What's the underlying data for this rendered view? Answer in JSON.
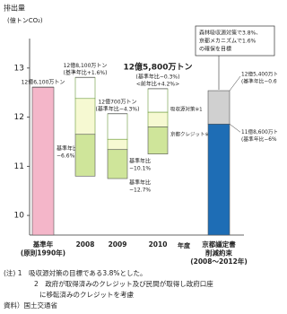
{
  "chart_data": {
    "type": "floating-bar",
    "y_label": "排出量",
    "y_unit": "(億トンCO₂)",
    "x_unit": "年度",
    "ylim": [
      9.6,
      13.6
    ],
    "yticks": [
      10,
      11,
      12,
      13
    ],
    "categories": [
      [
        "基準年",
        "(原則1990年)"
      ],
      [
        "2008"
      ],
      [
        "2009"
      ],
      [
        "2010"
      ],
      [
        "京都議定書",
        "削減約束",
        "(2008〜2012年)"
      ]
    ],
    "bars": [
      {
        "segments": [
          {
            "range": [
              null,
              12.61
            ],
            "color": "#f4b6c9"
          }
        ],
        "labels": [
          {
            "value": 12.61,
            "value_label": "12億6,100万トン",
            "notes": []
          }
        ]
      },
      {
        "segments": [
          {
            "range": [
              12.38,
              12.81
            ],
            "color": "#ffffff"
          },
          {
            "range": [
              11.65,
              12.38
            ],
            "color": "#f6f9d2"
          },
          {
            "range": [
              10.8,
              11.65
            ],
            "color": "#cfe59a"
          }
        ],
        "labels": [
          {
            "value": 12.81,
            "value_label": "12億8,100万トン",
            "notes": [
              "(基準年比+1.6%)"
            ]
          }
        ]
      },
      {
        "segments": [
          {
            "range": [
              11.55,
              12.07
            ],
            "color": "#ffffff"
          },
          {
            "range": [
              11.34,
              11.55
            ],
            "color": "#f6f9d2"
          },
          {
            "range": [
              10.75,
              11.34
            ],
            "color": "#cfe59a"
          }
        ],
        "labels": [
          {
            "value": 12.07,
            "value_label": "12億700万トン",
            "notes": [
              "(基準年比−4.3%)"
            ]
          }
        ]
      },
      {
        "segments": [
          {
            "range": [
              12.1,
              12.58
            ],
            "color": "#ffffff"
          },
          {
            "range": [
              11.8,
              12.1
            ],
            "color": "#f6f9d2"
          },
          {
            "range": [
              11.25,
              11.8
            ],
            "color": "#cfe59a"
          }
        ],
        "labels": [
          {
            "value": 12.58,
            "value_label": "12億5,800万トン",
            "notes": [
              "(基準年比−0.3%)",
              "<前年比+4.2%>"
            ],
            "color": "#e8201a"
          }
        ]
      },
      {
        "segments": [
          {
            "range": [
              null,
              11.86
            ],
            "color": "#1e6db5"
          },
          {
            "range": [
              11.86,
              12.54
            ],
            "color": "#d0d0d0"
          }
        ],
        "labels": [
          {
            "value": 12.54,
            "value_label": "12億5,400万トン",
            "notes": [
              "(基準年比−0.6%)"
            ]
          },
          {
            "value": 11.86,
            "value_label": "11億8,600万トン",
            "notes": [
              "(基準年比−6%)"
            ]
          }
        ]
      }
    ],
    "segment_notes": [
      "吸収源対策※1",
      "京都クレジット※2"
    ],
    "reference_notes": [
      [
        "基準年比",
        "−6.6%"
      ],
      [
        "基準年比",
        "−10.1%"
      ],
      [
        "基準年比",
        "−12.7%"
      ]
    ],
    "callout": [
      "森林吸収源対策で3.8%、",
      "京都メカニズムで1.6%",
      "の確保を目標"
    ],
    "footnotes": [
      "(注) 1　吸収源対策の目標である3.8%とした。",
      "2　政府が取得済みのクレジット及び民間が取得し政府口座",
      "に移転済みのクレジットを考慮",
      "資料）国土交通省"
    ]
  }
}
